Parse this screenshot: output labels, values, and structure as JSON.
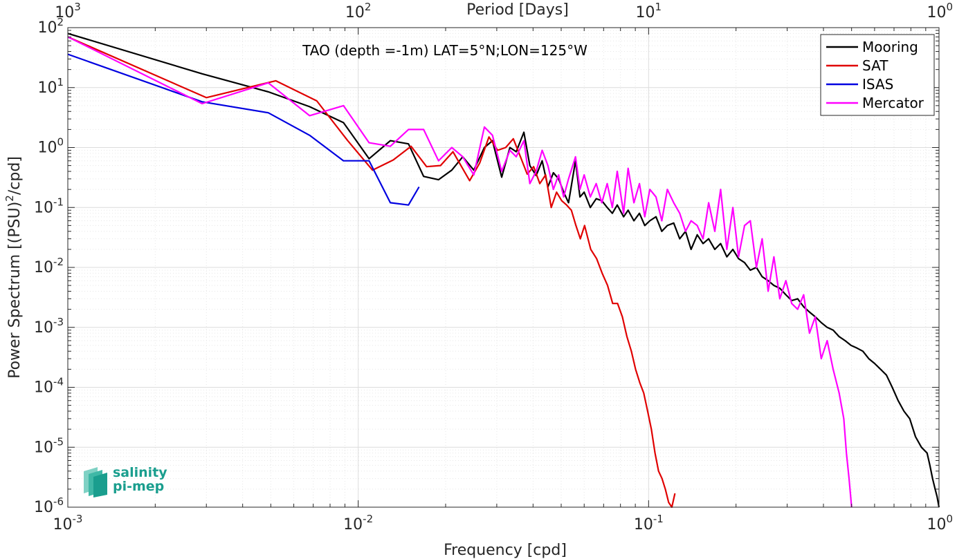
{
  "chart_data": {
    "type": "line",
    "title": "TAO (depth =-1m) LAT=5°N;LON=125°W",
    "xlabel": "Frequency [cpd]",
    "ylabel": "Power Spectrum [(PSU)",
    "ylabel_sup": "2",
    "ylabel_tail": "/cpd]",
    "top_xlabel": "Period [Days]",
    "x_scale": "log",
    "y_scale": "log",
    "xlim": [
      0.001,
      1
    ],
    "ylim": [
      1e-06,
      100
    ],
    "grid": true,
    "legend_position": "top-right",
    "x_ticks": [
      {
        "base": "10",
        "exp": "-3",
        "value": 0.001
      },
      {
        "base": "10",
        "exp": "-2",
        "value": 0.01
      },
      {
        "base": "10",
        "exp": "-1",
        "value": 0.1
      },
      {
        "base": "10",
        "exp": "0",
        "value": 1
      }
    ],
    "top_ticks": [
      {
        "base": "10",
        "exp": "3",
        "freq": 0.001
      },
      {
        "base": "10",
        "exp": "2",
        "freq": 0.01
      },
      {
        "base": "10",
        "exp": "1",
        "freq": 0.1
      },
      {
        "base": "10",
        "exp": "0",
        "freq": 1
      }
    ],
    "y_ticks": [
      {
        "base": "10",
        "exp": "2",
        "value": 100
      },
      {
        "base": "10",
        "exp": "1",
        "value": 10
      },
      {
        "base": "10",
        "exp": "0",
        "value": 1
      },
      {
        "base": "10",
        "exp": "-1",
        "value": 0.1
      },
      {
        "base": "10",
        "exp": "-2",
        "value": 0.01
      },
      {
        "base": "10",
        "exp": "-3",
        "value": 0.001
      },
      {
        "base": "10",
        "exp": "-4",
        "value": 0.0001
      },
      {
        "base": "10",
        "exp": "-5",
        "value": 1e-05
      },
      {
        "base": "10",
        "exp": "-6",
        "value": 1e-06
      }
    ],
    "series": [
      {
        "name": "Mooring",
        "color": "#000000",
        "x": [
          0.001,
          0.0029,
          0.0049,
          0.0068,
          0.0089,
          0.0109,
          0.0129,
          0.0149,
          0.0168,
          0.0189,
          0.021,
          0.0229,
          0.025,
          0.0272,
          0.029,
          0.0312,
          0.0333,
          0.035,
          0.0372,
          0.039,
          0.041,
          0.043,
          0.045,
          0.047,
          0.049,
          0.051,
          0.053,
          0.056,
          0.058,
          0.06,
          0.063,
          0.066,
          0.069,
          0.072,
          0.075,
          0.078,
          0.082,
          0.085,
          0.089,
          0.093,
          0.097,
          0.101,
          0.106,
          0.111,
          0.116,
          0.122,
          0.128,
          0.134,
          0.14,
          0.147,
          0.154,
          0.161,
          0.169,
          0.177,
          0.186,
          0.195,
          0.204,
          0.214,
          0.224,
          0.235,
          0.246,
          0.258,
          0.27,
          0.283,
          0.297,
          0.311,
          0.326,
          0.342,
          0.358,
          0.375,
          0.393,
          0.412,
          0.432,
          0.453,
          0.475,
          0.498,
          0.522,
          0.547,
          0.573,
          0.6,
          0.629,
          0.659,
          0.69,
          0.723,
          0.757,
          0.793,
          0.83,
          0.87,
          0.91,
          0.93,
          0.95,
          0.97,
          0.985,
          1.0
        ],
        "y": [
          80,
          17,
          8.5,
          4.8,
          2.6,
          0.65,
          1.3,
          1.15,
          0.33,
          0.29,
          0.42,
          0.7,
          0.42,
          1.0,
          1.3,
          0.32,
          1.0,
          0.85,
          1.8,
          0.5,
          0.34,
          0.6,
          0.22,
          0.38,
          0.3,
          0.18,
          0.12,
          0.6,
          0.15,
          0.18,
          0.1,
          0.14,
          0.13,
          0.1,
          0.08,
          0.11,
          0.07,
          0.09,
          0.06,
          0.08,
          0.05,
          0.06,
          0.07,
          0.04,
          0.05,
          0.055,
          0.03,
          0.04,
          0.02,
          0.035,
          0.025,
          0.03,
          0.02,
          0.025,
          0.015,
          0.02,
          0.014,
          0.012,
          0.009,
          0.01,
          0.007,
          0.006,
          0.005,
          0.0045,
          0.0035,
          0.0028,
          0.003,
          0.0022,
          0.0018,
          0.0015,
          0.0012,
          0.001,
          0.0009,
          0.0007,
          0.0006,
          0.0005,
          0.00045,
          0.0004,
          0.0003,
          0.00025,
          0.0002,
          0.00016,
          0.0001,
          6e-05,
          4e-05,
          3e-05,
          1.5e-05,
          1e-05,
          8e-06,
          5e-06,
          3e-06,
          2e-06,
          1.5e-06,
          1e-06
        ]
      },
      {
        "name": "SAT",
        "color": "#e00000",
        "x": [
          0.001,
          0.003,
          0.0052,
          0.0072,
          0.0092,
          0.0112,
          0.0132,
          0.0152,
          0.0172,
          0.0192,
          0.0212,
          0.0242,
          0.0262,
          0.0282,
          0.0302,
          0.0322,
          0.0342,
          0.0362,
          0.0382,
          0.0402,
          0.0422,
          0.0442,
          0.0462,
          0.0482,
          0.0502,
          0.0522,
          0.0542,
          0.0562,
          0.0582,
          0.0602,
          0.0632,
          0.0662,
          0.0692,
          0.0722,
          0.0752,
          0.0782,
          0.0812,
          0.0842,
          0.0872,
          0.0902,
          0.0932,
          0.0962,
          0.0992,
          0.1022,
          0.1052,
          0.1082,
          0.1112,
          0.1142,
          0.1172,
          0.1202,
          0.1232
        ],
        "y": [
          70,
          6.8,
          13,
          6,
          1.3,
          0.42,
          0.62,
          1.05,
          0.48,
          0.5,
          0.85,
          0.28,
          0.55,
          1.5,
          0.9,
          1.0,
          1.4,
          0.7,
          0.36,
          0.48,
          0.25,
          0.35,
          0.1,
          0.18,
          0.13,
          0.11,
          0.09,
          0.05,
          0.03,
          0.05,
          0.02,
          0.014,
          0.008,
          0.005,
          0.0025,
          0.0025,
          0.0015,
          0.0007,
          0.0004,
          0.0002,
          0.00012,
          8e-05,
          4e-05,
          2e-05,
          8e-06,
          4e-06,
          3e-06,
          2e-06,
          1.2e-06,
          1e-06,
          1.7e-06
        ]
      },
      {
        "name": "ISAS",
        "color": "#0000e0",
        "x": [
          0.001,
          0.0029,
          0.0049,
          0.0068,
          0.0089,
          0.0109,
          0.0129,
          0.0149,
          0.0162
        ],
        "y": [
          36,
          5.8,
          3.8,
          1.6,
          0.6,
          0.6,
          0.12,
          0.11,
          0.22
        ]
      },
      {
        "name": "Mercator",
        "color": "#ff00ff",
        "x": [
          0.001,
          0.0029,
          0.0049,
          0.0068,
          0.0089,
          0.0109,
          0.0129,
          0.0149,
          0.0168,
          0.0189,
          0.021,
          0.0229,
          0.025,
          0.0272,
          0.029,
          0.0312,
          0.0333,
          0.035,
          0.0372,
          0.039,
          0.041,
          0.043,
          0.045,
          0.047,
          0.049,
          0.051,
          0.053,
          0.056,
          0.058,
          0.06,
          0.063,
          0.066,
          0.069,
          0.072,
          0.075,
          0.078,
          0.082,
          0.085,
          0.089,
          0.093,
          0.097,
          0.101,
          0.106,
          0.111,
          0.116,
          0.122,
          0.128,
          0.134,
          0.14,
          0.147,
          0.154,
          0.161,
          0.169,
          0.177,
          0.186,
          0.195,
          0.204,
          0.214,
          0.224,
          0.235,
          0.246,
          0.258,
          0.27,
          0.283,
          0.297,
          0.311,
          0.326,
          0.342,
          0.358,
          0.375,
          0.393,
          0.412,
          0.432,
          0.453,
          0.47,
          0.48,
          0.49,
          0.5
        ],
        "y": [
          70,
          5.4,
          12,
          3.4,
          5.0,
          1.2,
          1.05,
          2.0,
          2.0,
          0.6,
          1.0,
          0.7,
          0.35,
          2.2,
          1.6,
          0.4,
          0.9,
          0.7,
          1.3,
          0.25,
          0.4,
          0.9,
          0.5,
          0.2,
          0.35,
          0.15,
          0.3,
          0.7,
          0.2,
          0.35,
          0.15,
          0.25,
          0.12,
          0.25,
          0.1,
          0.4,
          0.08,
          0.45,
          0.12,
          0.25,
          0.07,
          0.2,
          0.15,
          0.06,
          0.2,
          0.12,
          0.08,
          0.04,
          0.06,
          0.05,
          0.03,
          0.12,
          0.04,
          0.2,
          0.02,
          0.1,
          0.015,
          0.05,
          0.06,
          0.01,
          0.03,
          0.004,
          0.015,
          0.003,
          0.006,
          0.0025,
          0.002,
          0.0035,
          0.0008,
          0.0015,
          0.0003,
          0.0006,
          0.0002,
          8e-05,
          3e-05,
          8e-06,
          3e-06,
          1e-06
        ]
      }
    ]
  },
  "logo": {
    "line1": "salinity",
    "line2": "pi-mep"
  }
}
